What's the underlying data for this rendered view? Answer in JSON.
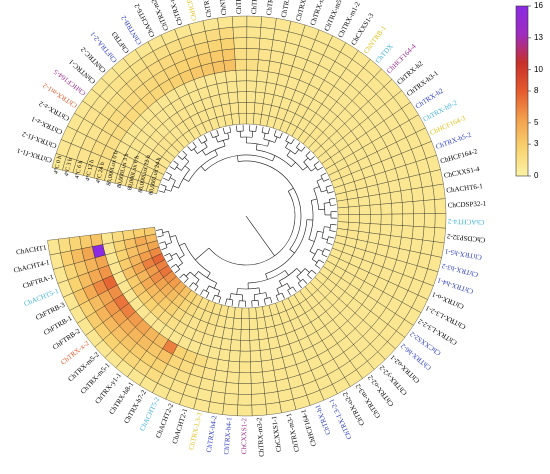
{
  "chart_data": {
    "type": "heatmap",
    "layout": "circular",
    "title": "",
    "colorscale": {
      "min": 0,
      "max": 16,
      "ticks": [
        0,
        3,
        5,
        8,
        10,
        13,
        16
      ],
      "colors": [
        "#fcf3a6",
        "#f9d26f",
        "#f2a04c",
        "#e55a2e",
        "#c6302a",
        "#9e2cc0",
        "#8a2be2"
      ]
    },
    "conditions": [
      "80,000Lux 24 h",
      "80,000Lux 12 h",
      "80,000Lux 6 h",
      "80,000Lux 3 h",
      "80,000Lux 0 h",
      "4°C 24 h",
      "4°C 12 h",
      "4°C 6 h",
      "4°C 3 h",
      "4°C 0 h"
    ],
    "genes": [
      {
        "name": "ChTRX-f1-1",
        "color": "#000000"
      },
      {
        "name": "ChTRX-f1-2",
        "color": "#000000"
      },
      {
        "name": "ChTRX-z-1",
        "color": "#000000"
      },
      {
        "name": "ChTRX-z-2",
        "color": "#000000"
      },
      {
        "name": "ChTRX-m1-2",
        "color": "#e0562b"
      },
      {
        "name": "ChHCF164-5",
        "color": "#9b2d8e"
      },
      {
        "name": "ChNTRC-1",
        "color": "#000000"
      },
      {
        "name": "ChNTRC-2",
        "color": "#000000"
      },
      {
        "name": "ChFTRA-2-1",
        "color": "#2b3bbd"
      },
      {
        "name": "ChFTR3",
        "color": "#000000"
      },
      {
        "name": "ChNTRB-2",
        "color": "#2b3bbd"
      },
      {
        "name": "ChACHT6-2",
        "color": "#000000"
      },
      {
        "name": "ChTRX-m2-1",
        "color": "#000000"
      },
      {
        "name": "ChTRX-m4-2",
        "color": "#000000"
      },
      {
        "name": "ChHCF164-6",
        "color": "#e0c21a"
      },
      {
        "name": "ChTRX-h7-1",
        "color": "#000000"
      },
      {
        "name": "ChNTRA-2",
        "color": "#000000"
      },
      {
        "name": "ChTRX-f2-1",
        "color": "#000000"
      },
      {
        "name": "ChTRX-f2-2",
        "color": "#000000"
      },
      {
        "name": "ChTRX-x-1",
        "color": "#000000"
      },
      {
        "name": "ChTRX-m1-1",
        "color": "#000000"
      },
      {
        "name": "ChTRX-y-2",
        "color": "#000000"
      },
      {
        "name": "ChTRX-m3-1",
        "color": "#000000"
      },
      {
        "name": "ChTRX-m5-1",
        "color": "#000000"
      },
      {
        "name": "ChTRX-m1-2",
        "color": "#000000"
      },
      {
        "name": "ChCXXS1-3",
        "color": "#000000"
      },
      {
        "name": "ChNTRB-1",
        "color": "#e0c21a"
      },
      {
        "name": "ChTDX",
        "color": "#3fb3d6"
      },
      {
        "name": "ChHCF164-4",
        "color": "#9b2d8e"
      },
      {
        "name": "ChTRX-h2",
        "color": "#000000"
      },
      {
        "name": "ChTRX-h3-1",
        "color": "#000000"
      },
      {
        "name": "ChTRX-h2",
        "color": "#2b3bbd"
      },
      {
        "name": "ChTRX-h9-2",
        "color": "#3fb3d6"
      },
      {
        "name": "ChHCF164-3",
        "color": "#e0c21a"
      },
      {
        "name": "ChTRX-h5-2",
        "color": "#2b3bbd"
      },
      {
        "name": "ChHCF164-2",
        "color": "#000000"
      },
      {
        "name": "ChCXXS1-4",
        "color": "#000000"
      },
      {
        "name": "ChACHT6-1",
        "color": "#000000"
      },
      {
        "name": "ChCDSP32-1",
        "color": "#000000"
      },
      {
        "name": "ChACHT4-2",
        "color": "#3fb3d6"
      },
      {
        "name": "ChCDSP32-2",
        "color": "#000000"
      },
      {
        "name": "ChTRX-h5-1",
        "color": "#2b3bbd"
      },
      {
        "name": "ChTRX-h3-2",
        "color": "#2b3bbd"
      },
      {
        "name": "ChTRX-h4-1",
        "color": "#2b3bbd"
      },
      {
        "name": "ChTRX-o-1",
        "color": "#000000"
      },
      {
        "name": "ChTRX-L3-2-1",
        "color": "#000000"
      },
      {
        "name": "ChTRX-L3-2-2",
        "color": "#000000"
      },
      {
        "name": "ChCXXS2-2",
        "color": "#2b3bbd"
      },
      {
        "name": "ChTRX-h6-2",
        "color": "#2b3bbd"
      },
      {
        "name": "ChTRX-o2-1",
        "color": "#000000"
      },
      {
        "name": "ChTRX-y2-2",
        "color": "#000000"
      },
      {
        "name": "ChTRX-o2-2",
        "color": "#000000"
      },
      {
        "name": "ChTRX-m3-2",
        "color": "#000000"
      },
      {
        "name": "ChTRX-o2-2",
        "color": "#000000"
      },
      {
        "name": "ChTRX-L3-2-1",
        "color": "#2b3bbd"
      },
      {
        "name": "ChTRX-h1",
        "color": "#2b3bbd"
      },
      {
        "name": "ChHCF164-1",
        "color": "#000000"
      },
      {
        "name": "ChTRX-m3-1",
        "color": "#000000"
      },
      {
        "name": "ChCXXS1-1",
        "color": "#000000"
      },
      {
        "name": "ChTRX-m3-2",
        "color": "#000000"
      },
      {
        "name": "ChCXXS1-2",
        "color": "#9b2d8e"
      },
      {
        "name": "ChTRX-h4-1",
        "color": "#2b3bbd"
      },
      {
        "name": "ChTRX-h4-2",
        "color": "#2b3bbd"
      },
      {
        "name": "ChTRX-L3-3",
        "color": "#e0c21a"
      },
      {
        "name": "ChACHT2-1",
        "color": "#000000"
      },
      {
        "name": "ChACHT2-2",
        "color": "#000000"
      },
      {
        "name": "ChACHT5-2",
        "color": "#3fb3d6"
      },
      {
        "name": "ChTRX-h7-2",
        "color": "#000000"
      },
      {
        "name": "ChTRX-h8-1",
        "color": "#000000"
      },
      {
        "name": "ChTRX-y1-1",
        "color": "#000000"
      },
      {
        "name": "ChTRX-m5-1",
        "color": "#000000"
      },
      {
        "name": "ChTRX-m5-2",
        "color": "#000000"
      },
      {
        "name": "ChTRX-x-2",
        "color": "#e0562b"
      },
      {
        "name": "ChFTRB-2",
        "color": "#000000"
      },
      {
        "name": "ChFTRB-1",
        "color": "#000000"
      },
      {
        "name": "ChFTRB-3",
        "color": "#000000"
      },
      {
        "name": "ChACHT5-1",
        "color": "#3fb3d6"
      },
      {
        "name": "ChFTRA-1",
        "color": "#000000"
      },
      {
        "name": "ChACHT4-1",
        "color": "#000000"
      },
      {
        "name": "ChACHT1",
        "color": "#000000"
      }
    ],
    "values": [
      [
        1.0,
        1.0,
        1.2,
        1.1,
        1.0,
        1.4,
        1.3,
        1.1,
        1.0,
        0.9
      ],
      [
        1.1,
        1.2,
        1.0,
        1.0,
        0.9,
        1.5,
        1.4,
        1.2,
        1.1,
        1.0
      ],
      [
        1.0,
        1.1,
        1.1,
        1.0,
        1.0,
        1.7,
        1.6,
        1.3,
        1.0,
        1.0
      ],
      [
        1.2,
        1.0,
        1.0,
        0.9,
        1.0,
        1.6,
        1.5,
        1.2,
        1.1,
        1.0
      ],
      [
        1.0,
        1.0,
        1.1,
        1.1,
        1.0,
        1.8,
        1.7,
        1.4,
        1.2,
        1.0
      ],
      [
        1.1,
        1.1,
        1.0,
        1.0,
        1.0,
        1.9,
        1.8,
        1.5,
        1.2,
        1.0
      ],
      [
        1.0,
        1.2,
        1.1,
        1.0,
        1.0,
        2.0,
        1.7,
        1.4,
        1.1,
        1.0
      ],
      [
        1.2,
        1.1,
        1.0,
        1.1,
        1.0,
        2.1,
        1.9,
        1.6,
        1.3,
        1.0
      ],
      [
        1.1,
        1.0,
        1.0,
        1.0,
        1.0,
        2.2,
        2.0,
        1.7,
        1.4,
        1.0
      ],
      [
        1.0,
        1.1,
        1.2,
        1.0,
        1.0,
        2.3,
        2.1,
        1.8,
        1.4,
        1.0
      ],
      [
        1.1,
        1.2,
        1.1,
        1.1,
        1.0,
        2.5,
        2.2,
        1.9,
        1.5,
        1.0
      ],
      [
        1.0,
        1.0,
        1.0,
        1.0,
        1.0,
        2.7,
        2.4,
        2.0,
        1.6,
        1.0
      ],
      [
        1.2,
        1.1,
        1.1,
        1.0,
        1.0,
        3.0,
        2.6,
        2.2,
        1.7,
        1.0
      ],
      [
        1.1,
        1.0,
        1.0,
        1.1,
        1.0,
        3.2,
        2.8,
        2.3,
        1.8,
        1.0
      ],
      [
        1.0,
        1.1,
        1.1,
        1.0,
        1.0,
        3.3,
        3.0,
        2.4,
        1.8,
        1.0
      ],
      [
        1.1,
        1.2,
        1.0,
        1.0,
        1.0,
        3.5,
        3.1,
        2.5,
        1.9,
        1.0
      ],
      [
        1.0,
        1.0,
        1.1,
        1.0,
        1.0,
        3.6,
        3.2,
        2.6,
        2.0,
        1.0
      ],
      [
        1.1,
        1.1,
        1.0,
        1.0,
        1.0,
        1.8,
        1.6,
        1.4,
        1.2,
        1.0
      ],
      [
        1.0,
        1.0,
        1.0,
        1.0,
        1.0,
        1.6,
        1.5,
        1.3,
        1.1,
        1.0
      ],
      [
        1.0,
        1.1,
        1.0,
        1.0,
        1.0,
        1.3,
        1.2,
        1.1,
        1.0,
        1.0
      ],
      [
        1.1,
        1.0,
        1.1,
        1.0,
        1.0,
        1.2,
        1.1,
        1.1,
        1.0,
        1.0
      ],
      [
        1.0,
        1.0,
        1.0,
        1.0,
        1.0,
        1.2,
        1.1,
        1.0,
        1.0,
        1.0
      ],
      [
        1.0,
        1.1,
        1.0,
        1.0,
        1.0,
        1.1,
        1.1,
        1.0,
        1.0,
        1.0
      ],
      [
        1.1,
        1.0,
        1.0,
        1.0,
        1.0,
        1.1,
        1.0,
        1.0,
        1.0,
        1.0
      ],
      [
        1.0,
        1.0,
        1.1,
        1.0,
        1.0,
        1.0,
        1.0,
        1.0,
        1.0,
        1.0
      ],
      [
        1.0,
        1.0,
        1.0,
        1.0,
        1.0,
        1.1,
        1.0,
        1.0,
        1.0,
        1.0
      ],
      [
        1.1,
        1.0,
        1.0,
        1.0,
        1.0,
        1.0,
        1.0,
        1.0,
        1.0,
        1.0
      ],
      [
        1.0,
        1.1,
        1.0,
        1.0,
        1.0,
        1.0,
        1.0,
        1.0,
        1.0,
        1.0
      ],
      [
        1.0,
        1.0,
        1.0,
        1.0,
        1.0,
        1.0,
        1.1,
        1.0,
        1.0,
        1.0
      ],
      [
        1.0,
        1.0,
        1.0,
        1.1,
        1.0,
        1.0,
        1.0,
        1.0,
        1.0,
        1.0
      ],
      [
        1.0,
        1.0,
        1.0,
        1.0,
        1.0,
        1.0,
        1.0,
        1.0,
        1.0,
        1.0
      ],
      [
        1.1,
        1.0,
        1.0,
        1.0,
        1.0,
        1.0,
        1.0,
        1.0,
        1.0,
        1.0
      ],
      [
        1.0,
        1.0,
        1.0,
        1.0,
        1.0,
        1.0,
        1.0,
        1.0,
        1.0,
        1.0
      ],
      [
        1.0,
        1.1,
        1.0,
        1.0,
        1.0,
        1.0,
        1.0,
        1.0,
        1.0,
        1.0
      ],
      [
        1.0,
        1.0,
        1.0,
        1.0,
        1.0,
        1.0,
        1.0,
        1.0,
        1.0,
        1.0
      ],
      [
        1.0,
        1.0,
        1.1,
        1.0,
        1.0,
        1.0,
        1.0,
        1.0,
        1.0,
        1.0
      ],
      [
        1.0,
        1.0,
        1.0,
        1.0,
        1.0,
        1.0,
        1.0,
        1.0,
        1.0,
        1.0
      ],
      [
        1.1,
        1.0,
        1.0,
        1.0,
        1.0,
        1.0,
        1.0,
        1.0,
        1.0,
        1.0
      ],
      [
        1.0,
        1.0,
        1.0,
        1.0,
        1.0,
        1.0,
        1.0,
        1.0,
        1.0,
        1.0
      ],
      [
        1.0,
        1.0,
        1.0,
        1.0,
        1.0,
        1.0,
        1.0,
        1.0,
        1.0,
        1.0
      ],
      [
        1.0,
        1.0,
        1.0,
        1.0,
        1.0,
        1.0,
        1.0,
        1.0,
        1.0,
        1.0
      ],
      [
        1.0,
        1.1,
        1.0,
        1.0,
        1.0,
        1.0,
        1.0,
        1.0,
        1.0,
        1.0
      ],
      [
        1.0,
        1.0,
        1.0,
        1.0,
        1.0,
        1.0,
        1.0,
        1.0,
        1.0,
        1.0
      ],
      [
        1.0,
        1.0,
        1.0,
        1.0,
        1.0,
        1.0,
        1.0,
        1.0,
        1.0,
        1.0
      ],
      [
        1.0,
        1.0,
        1.0,
        1.0,
        1.0,
        1.0,
        1.0,
        1.0,
        1.0,
        1.0
      ],
      [
        1.0,
        1.0,
        1.0,
        1.1,
        1.0,
        1.0,
        1.0,
        1.0,
        1.0,
        1.0
      ],
      [
        1.0,
        1.0,
        1.0,
        1.0,
        1.0,
        1.0,
        1.0,
        1.0,
        1.0,
        1.0
      ],
      [
        1.0,
        1.0,
        1.0,
        1.0,
        1.0,
        1.0,
        1.0,
        1.0,
        1.0,
        1.0
      ],
      [
        1.0,
        1.0,
        1.0,
        1.0,
        1.0,
        1.0,
        1.0,
        1.0,
        1.0,
        1.0
      ],
      [
        1.0,
        1.0,
        1.0,
        1.0,
        1.0,
        1.0,
        1.0,
        1.0,
        1.0,
        1.0
      ],
      [
        1.1,
        1.0,
        1.0,
        1.0,
        1.0,
        1.0,
        1.0,
        1.0,
        1.0,
        1.0
      ],
      [
        1.0,
        1.0,
        1.0,
        1.0,
        1.0,
        1.0,
        1.0,
        1.0,
        1.0,
        1.0
      ],
      [
        1.0,
        1.0,
        1.0,
        1.0,
        1.0,
        1.1,
        1.0,
        1.0,
        1.0,
        1.0
      ],
      [
        1.0,
        1.0,
        1.0,
        1.0,
        1.0,
        1.0,
        1.0,
        1.0,
        1.0,
        1.0
      ],
      [
        1.0,
        1.0,
        1.0,
        1.0,
        1.0,
        1.0,
        1.0,
        1.0,
        1.0,
        1.0
      ],
      [
        1.0,
        1.1,
        1.0,
        1.0,
        1.0,
        1.0,
        1.0,
        1.0,
        1.0,
        1.0
      ],
      [
        1.0,
        1.0,
        1.0,
        1.0,
        1.0,
        1.0,
        1.0,
        1.0,
        1.0,
        1.0
      ],
      [
        1.0,
        1.0,
        1.0,
        1.0,
        1.0,
        1.0,
        1.1,
        1.0,
        1.0,
        1.0
      ],
      [
        1.0,
        1.0,
        1.0,
        1.0,
        1.0,
        1.0,
        1.0,
        1.0,
        1.0,
        1.0
      ],
      [
        1.0,
        1.0,
        1.0,
        1.0,
        1.0,
        1.0,
        1.0,
        1.0,
        1.0,
        1.0
      ],
      [
        1.0,
        1.0,
        1.0,
        1.0,
        1.0,
        1.1,
        1.0,
        1.0,
        1.0,
        1.0
      ],
      [
        1.1,
        1.0,
        1.0,
        1.0,
        1.0,
        1.0,
        1.0,
        1.0,
        1.0,
        1.0
      ],
      [
        1.0,
        1.0,
        1.0,
        1.0,
        1.0,
        1.0,
        1.0,
        1.0,
        1.0,
        1.0
      ],
      [
        1.2,
        1.1,
        1.0,
        1.0,
        1.0,
        1.3,
        1.2,
        1.1,
        1.0,
        1.0
      ],
      [
        1.4,
        1.3,
        1.2,
        1.1,
        1.0,
        1.8,
        1.5,
        1.3,
        1.1,
        1.0
      ],
      [
        1.6,
        1.4,
        1.3,
        1.2,
        1.0,
        2.3,
        1.9,
        1.5,
        1.2,
        1.0
      ],
      [
        1.5,
        1.4,
        1.2,
        1.1,
        1.0,
        2.6,
        2.2,
        1.7,
        1.3,
        1.0
      ],
      [
        2.0,
        1.8,
        1.5,
        1.3,
        1.0,
        6.5,
        3.5,
        2.5,
        1.8,
        1.0
      ],
      [
        2.5,
        2.2,
        1.8,
        1.5,
        1.0,
        3.8,
        3.2,
        2.6,
        1.9,
        1.0
      ],
      [
        3.5,
        3.0,
        2.5,
        1.9,
        1.0,
        4.2,
        3.8,
        3.0,
        2.2,
        1.0
      ],
      [
        4.5,
        3.8,
        3.0,
        2.2,
        1.0,
        5.0,
        4.2,
        3.4,
        2.4,
        1.0
      ],
      [
        5.5,
        4.5,
        3.6,
        2.6,
        1.0,
        5.5,
        4.6,
        3.6,
        2.6,
        1.0
      ],
      [
        6.0,
        5.2,
        4.0,
        2.8,
        1.0,
        6.5,
        5.2,
        4.0,
        2.8,
        1.0
      ],
      [
        7.0,
        6.0,
        4.8,
        3.2,
        1.0,
        7.0,
        5.6,
        4.3,
        3.0,
        1.0
      ],
      [
        6.5,
        5.5,
        4.2,
        3.0,
        1.0,
        6.0,
        5.0,
        3.8,
        2.7,
        1.0
      ],
      [
        7.5,
        6.5,
        5.0,
        3.5,
        1.0,
        7.5,
        6.2,
        4.8,
        3.2,
        1.0
      ],
      [
        6.2,
        5.4,
        4.2,
        3.0,
        1.0,
        5.8,
        4.9,
        3.8,
        2.6,
        1.0
      ],
      [
        5.0,
        4.3,
        3.6,
        2.6,
        1.0,
        5.0,
        4.3,
        3.3,
        2.4,
        1.0
      ],
      [
        4.0,
        4.8,
        3.5,
        2.5,
        1.0,
        16.0,
        5.0,
        3.8,
        2.8,
        1.0
      ],
      [
        3.0,
        2.8,
        2.4,
        1.9,
        1.0,
        3.4,
        3.0,
        2.4,
        1.8,
        1.0
      ]
    ]
  }
}
